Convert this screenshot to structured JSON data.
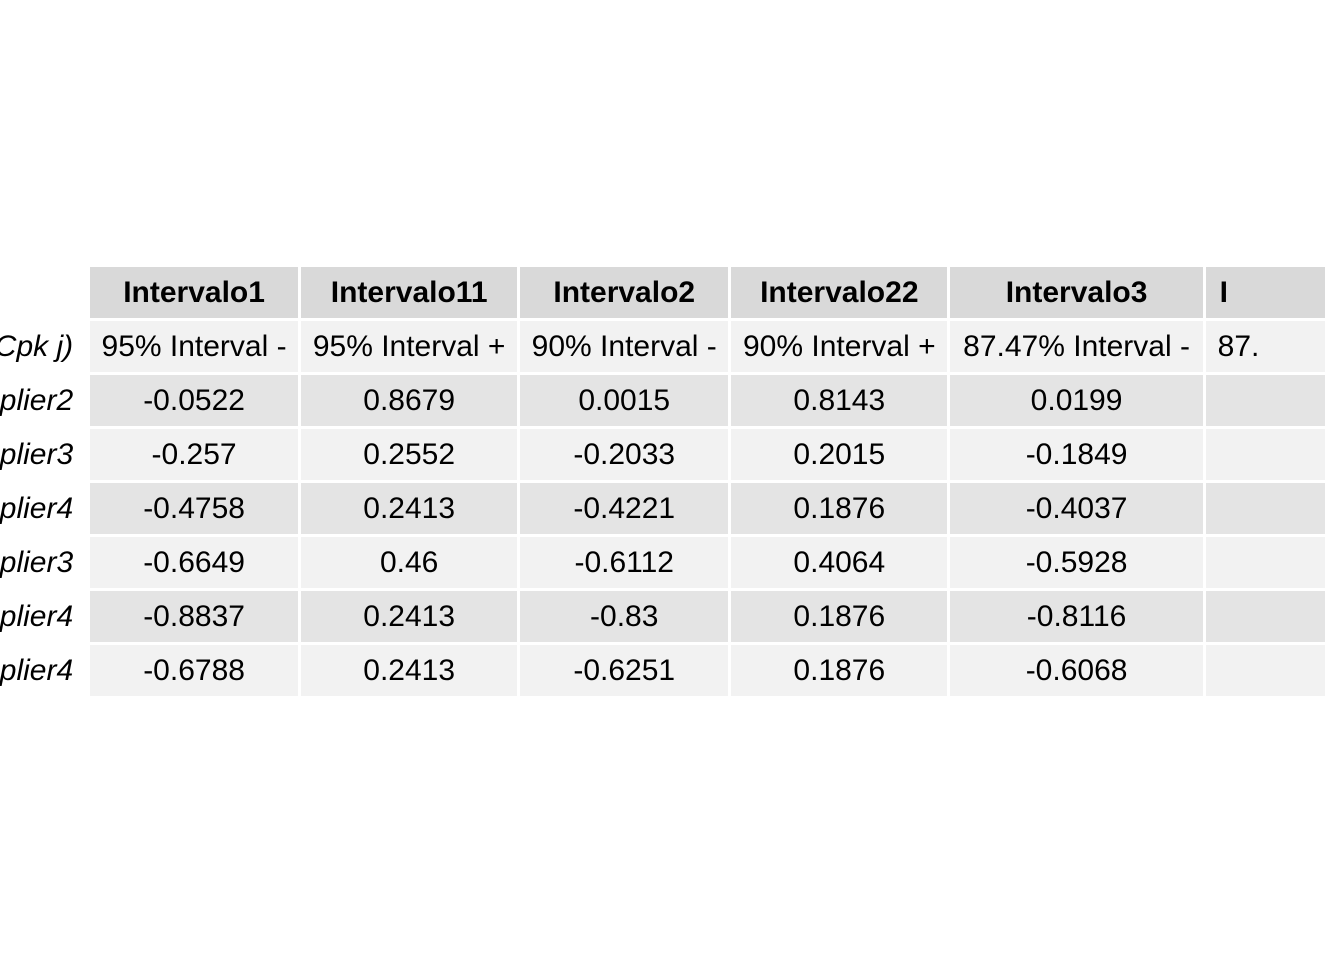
{
  "chart_data": {
    "type": "table",
    "columns": [
      "Intervalo1",
      "Intervalo11",
      "Intervalo2",
      "Intervalo22",
      "Intervalo3",
      "I"
    ],
    "subheader_label": "Cpk j)",
    "subheader": [
      "95% Interval -",
      "95% Interval +",
      "90% Interval -",
      "90% Interval +",
      "87.47% Interval -",
      "87."
    ],
    "rows": [
      {
        "label": "plier2",
        "values": [
          "-0.0522",
          "0.8679",
          "0.0015",
          "0.8143",
          "0.0199",
          ""
        ]
      },
      {
        "label": "plier3",
        "values": [
          "-0.257",
          "0.2552",
          "-0.2033",
          "0.2015",
          "-0.1849",
          ""
        ]
      },
      {
        "label": "plier4",
        "values": [
          "-0.4758",
          "0.2413",
          "-0.4221",
          "0.1876",
          "-0.4037",
          ""
        ]
      },
      {
        "label": "plier3",
        "values": [
          "-0.6649",
          "0.46",
          "-0.6112",
          "0.4064",
          "-0.5928",
          ""
        ]
      },
      {
        "label": "plier4",
        "values": [
          "-0.8837",
          "0.2413",
          "-0.83",
          "0.1876",
          "-0.8116",
          ""
        ]
      },
      {
        "label": "plier4",
        "values": [
          "-0.6788",
          "0.2413",
          "-0.6251",
          "0.1876",
          "-0.6068",
          ""
        ]
      }
    ],
    "colors": {
      "header_bg": "#d9d9d9",
      "row_dark": "#e4e4e4",
      "row_light": "#f2f2f2"
    }
  }
}
